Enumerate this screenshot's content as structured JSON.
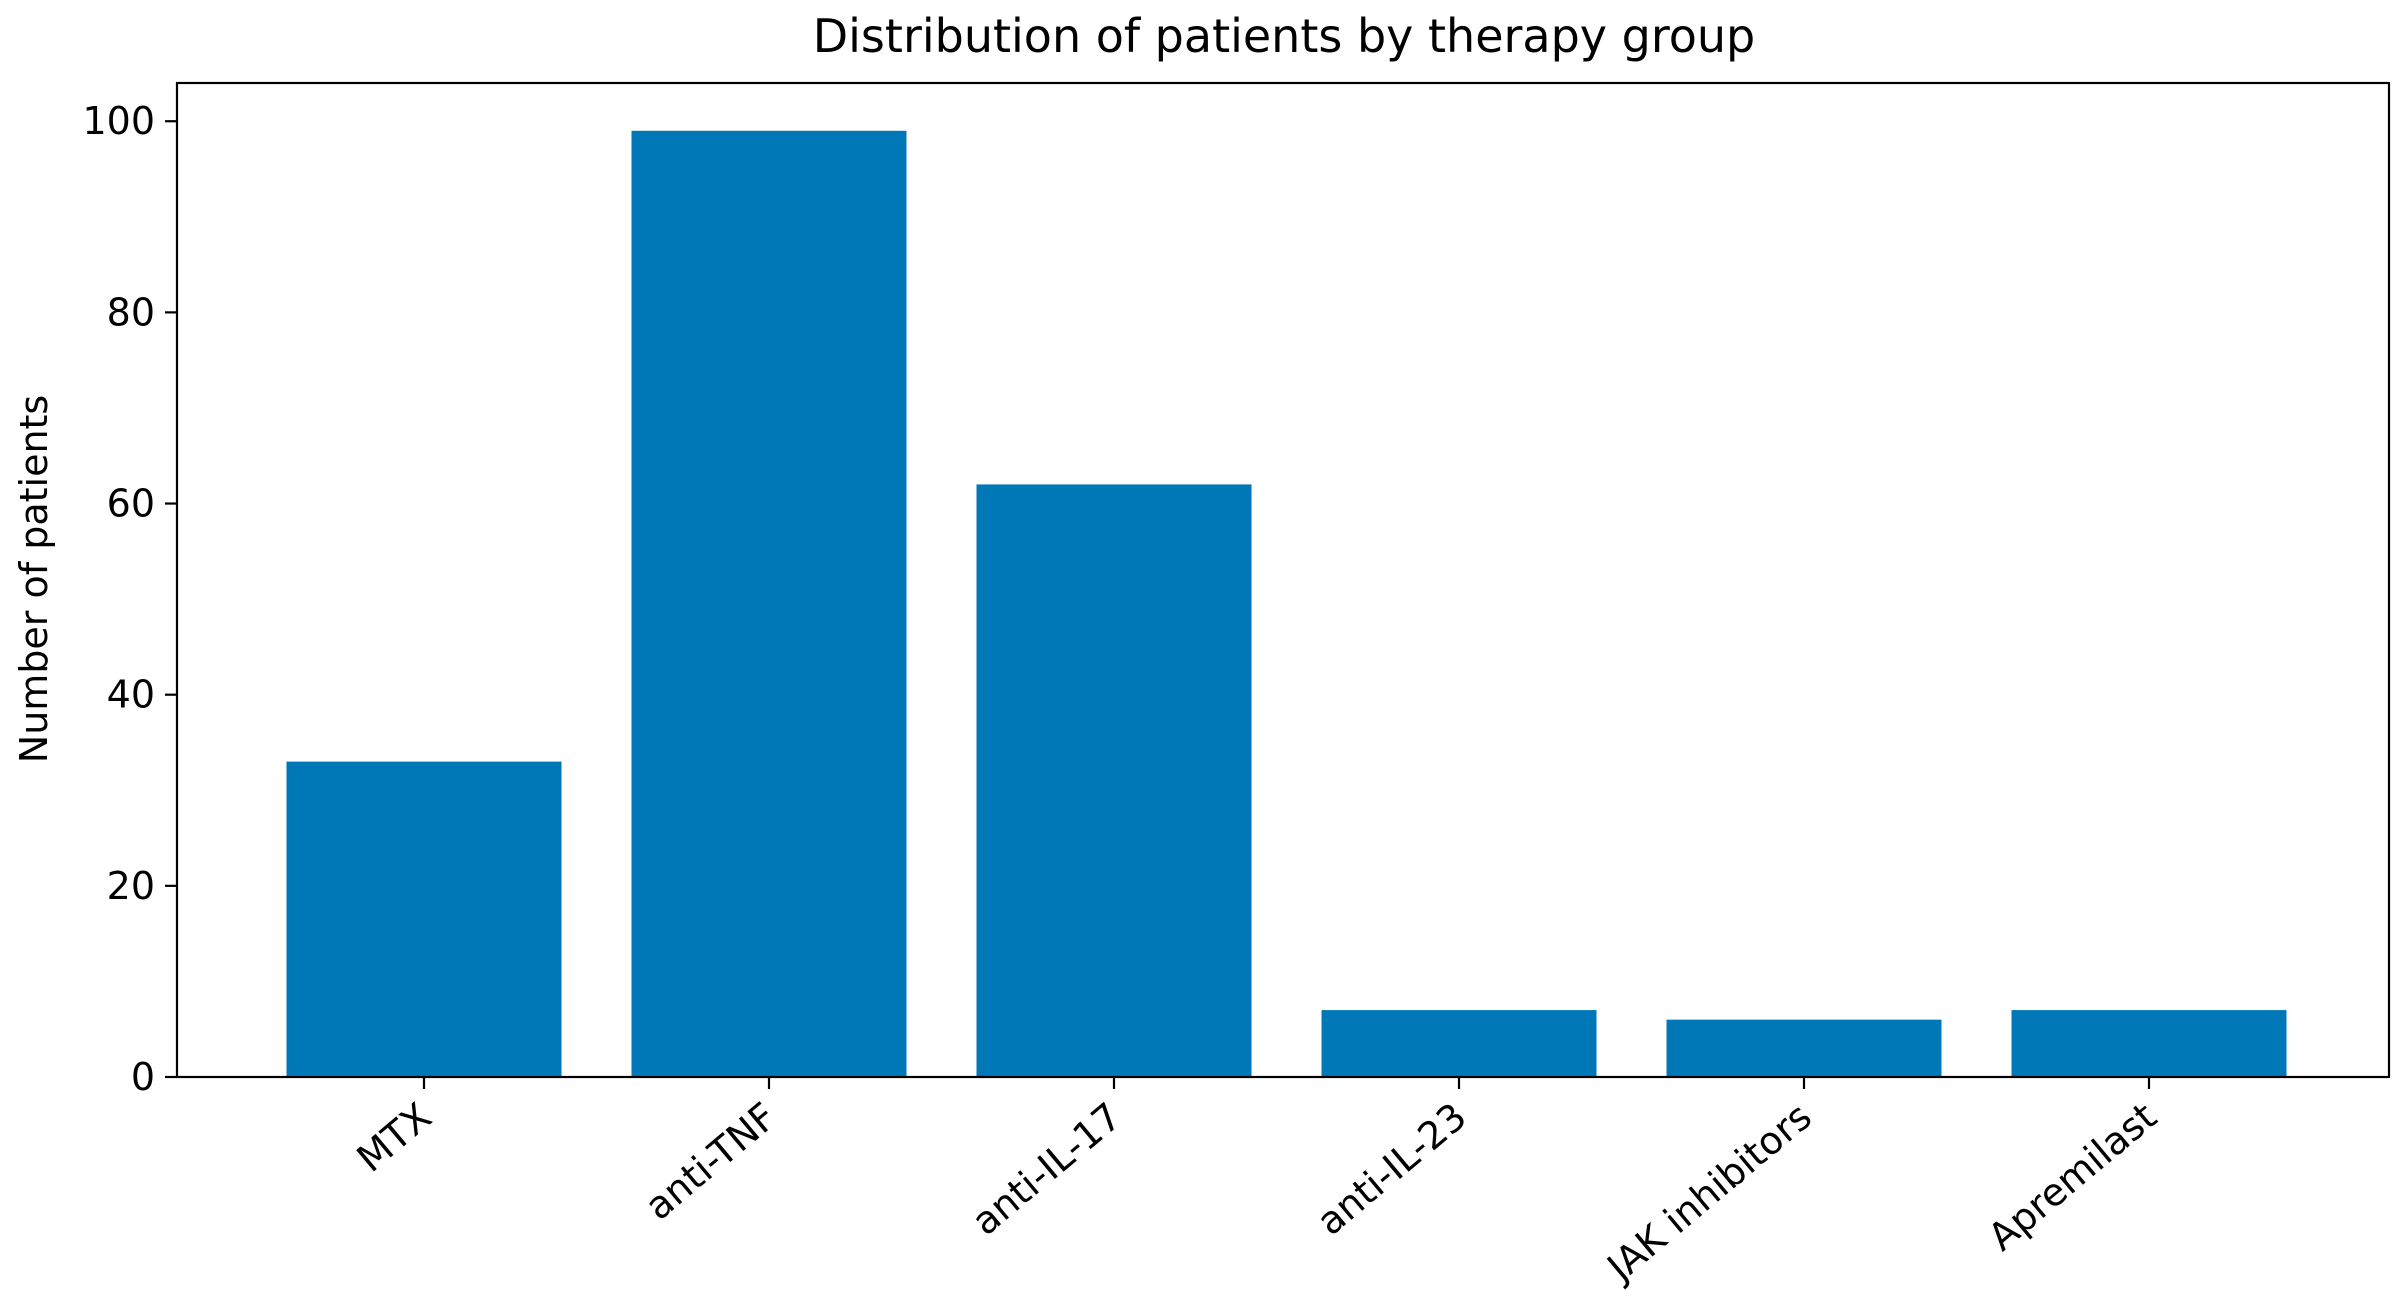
{
  "chart_data": {
    "type": "bar",
    "title": "Distribution of patients by therapy group",
    "xlabel": "",
    "ylabel": "Number of patients",
    "categories": [
      "MTX",
      "anti-TNF",
      "anti-IL-17",
      "anti-IL-23",
      "JAK inhibitors",
      "Apremilast"
    ],
    "values": [
      33,
      99,
      62,
      7,
      6,
      7
    ],
    "ylim": [
      0,
      104
    ],
    "yticks": [
      0,
      20,
      40,
      60,
      80,
      100
    ],
    "grid": false,
    "legend": "none",
    "bar_color": "#0077b7"
  }
}
